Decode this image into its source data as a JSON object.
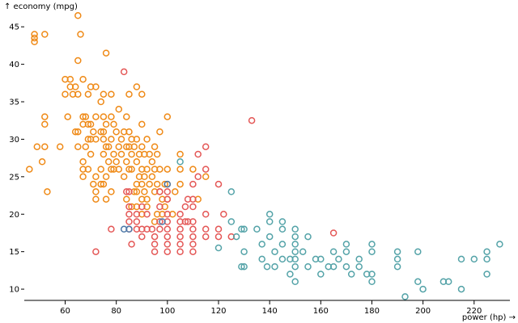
{
  "chart_data": {
    "type": "scatter",
    "xlabel": "power (hp) →",
    "ylabel": "↑ economy (mpg)",
    "xlim": [
      44,
      234
    ],
    "ylim": [
      8.5,
      47.5
    ],
    "xticks": [
      "60",
      "80",
      "100",
      "120",
      "140",
      "160",
      "180",
      "200",
      "220"
    ],
    "yticks": [
      "10",
      "15",
      "20",
      "25",
      "30",
      "35",
      "40",
      "45"
    ],
    "grid": false,
    "legend": "none",
    "series": [
      {
        "color": "#ef8a17",
        "points": [
          [
            46,
            26
          ],
          [
            48,
            44
          ],
          [
            48,
            43.5
          ],
          [
            48,
            43
          ],
          [
            49,
            29
          ],
          [
            51,
            27
          ],
          [
            52,
            44
          ],
          [
            52,
            33
          ],
          [
            52,
            32
          ],
          [
            52,
            29
          ],
          [
            53,
            23
          ],
          [
            58,
            29
          ],
          [
            60,
            38
          ],
          [
            60,
            36
          ],
          [
            61,
            33
          ],
          [
            62,
            38
          ],
          [
            62,
            37
          ],
          [
            63,
            36
          ],
          [
            64,
            37
          ],
          [
            64,
            31
          ],
          [
            65,
            46.5
          ],
          [
            65,
            40.5
          ],
          [
            65,
            36
          ],
          [
            65,
            31
          ],
          [
            65,
            29
          ],
          [
            66,
            44
          ],
          [
            67,
            38
          ],
          [
            67,
            33
          ],
          [
            67,
            32
          ],
          [
            67,
            27
          ],
          [
            67,
            26
          ],
          [
            67,
            25
          ],
          [
            68,
            33
          ],
          [
            68,
            29
          ],
          [
            69,
            36
          ],
          [
            69,
            32
          ],
          [
            69,
            30
          ],
          [
            69,
            26
          ],
          [
            70,
            37
          ],
          [
            70,
            32
          ],
          [
            70,
            30
          ],
          [
            70,
            28
          ],
          [
            71,
            31
          ],
          [
            71,
            24
          ],
          [
            72,
            37
          ],
          [
            72,
            33
          ],
          [
            72,
            30
          ],
          [
            72,
            25
          ],
          [
            72,
            23
          ],
          [
            72,
            22
          ],
          [
            74,
            35
          ],
          [
            74,
            31
          ],
          [
            74,
            26
          ],
          [
            74,
            24
          ],
          [
            75,
            36
          ],
          [
            75,
            33
          ],
          [
            75,
            31
          ],
          [
            75,
            30
          ],
          [
            75,
            28
          ],
          [
            75,
            24
          ],
          [
            76,
            41.5
          ],
          [
            76,
            32
          ],
          [
            76,
            29
          ],
          [
            76,
            25
          ],
          [
            76,
            22
          ],
          [
            77,
            29
          ],
          [
            77,
            27
          ],
          [
            78,
            36
          ],
          [
            78,
            33
          ],
          [
            78,
            30
          ],
          [
            78,
            26
          ],
          [
            78,
            23
          ],
          [
            79,
            32
          ],
          [
            79,
            28
          ],
          [
            79,
            26
          ],
          [
            80,
            31
          ],
          [
            80,
            27
          ],
          [
            81,
            34
          ],
          [
            81,
            29
          ],
          [
            81,
            26
          ],
          [
            82,
            30
          ],
          [
            82,
            28
          ],
          [
            83,
            31
          ],
          [
            83,
            25
          ],
          [
            84,
            33
          ],
          [
            84,
            29
          ],
          [
            84,
            27
          ],
          [
            84,
            22
          ],
          [
            85,
            36
          ],
          [
            85,
            31
          ],
          [
            85,
            29
          ],
          [
            85,
            26
          ],
          [
            86,
            30
          ],
          [
            86,
            26
          ],
          [
            86,
            21
          ],
          [
            87,
            29
          ],
          [
            87,
            23
          ],
          [
            88,
            37
          ],
          [
            88,
            30
          ],
          [
            88,
            27
          ],
          [
            88,
            23
          ],
          [
            88,
            21
          ],
          [
            89,
            28
          ],
          [
            89,
            25
          ],
          [
            90,
            36
          ],
          [
            90,
            32
          ],
          [
            90,
            29
          ],
          [
            90,
            26
          ],
          [
            90,
            24
          ],
          [
            90,
            22
          ],
          [
            91,
            28
          ],
          [
            91,
            25
          ],
          [
            92,
            30
          ],
          [
            92,
            26
          ],
          [
            92,
            22
          ],
          [
            93,
            28
          ],
          [
            93,
            24
          ],
          [
            94,
            27
          ],
          [
            94,
            25
          ],
          [
            95,
            29
          ],
          [
            95,
            26
          ],
          [
            95,
            23
          ],
          [
            96,
            28
          ],
          [
            96,
            24
          ],
          [
            97,
            31
          ],
          [
            97,
            26
          ],
          [
            97,
            23
          ],
          [
            98,
            22
          ],
          [
            99,
            24
          ],
          [
            99,
            21
          ],
          [
            100,
            33
          ],
          [
            100,
            26
          ],
          [
            100,
            24
          ],
          [
            100,
            22
          ],
          [
            102,
            20
          ],
          [
            103,
            23
          ],
          [
            105,
            28
          ],
          [
            105,
            26
          ],
          [
            105,
            24
          ],
          [
            110,
            26
          ],
          [
            112,
            22
          ],
          [
            115,
            25
          ],
          [
            86,
            28
          ],
          [
            88,
            24
          ],
          [
            91,
            23
          ],
          [
            95,
            19
          ],
          [
            96,
            20
          ],
          [
            98,
            20
          ],
          [
            90,
            20
          ],
          [
            92,
            21
          ]
        ]
      },
      {
        "color": "#e45756",
        "points": [
          [
            72,
            15
          ],
          [
            78,
            18
          ],
          [
            83,
            39
          ],
          [
            85,
            23
          ],
          [
            85,
            21
          ],
          [
            85,
            20
          ],
          [
            85,
            19
          ],
          [
            85,
            18
          ],
          [
            88,
            18
          ],
          [
            88,
            20
          ],
          [
            88,
            19
          ],
          [
            90,
            21
          ],
          [
            90,
            18
          ],
          [
            90,
            17
          ],
          [
            92,
            20
          ],
          [
            92,
            18
          ],
          [
            95,
            17
          ],
          [
            95,
            16
          ],
          [
            95,
            15
          ],
          [
            97,
            23
          ],
          [
            97,
            21
          ],
          [
            97,
            19
          ],
          [
            97,
            18
          ],
          [
            100,
            23
          ],
          [
            100,
            22
          ],
          [
            100,
            20
          ],
          [
            100,
            19
          ],
          [
            100,
            18
          ],
          [
            100,
            17
          ],
          [
            100,
            16
          ],
          [
            100,
            15
          ],
          [
            105,
            20
          ],
          [
            105,
            19
          ],
          [
            105,
            18
          ],
          [
            105,
            17
          ],
          [
            105,
            16
          ],
          [
            105,
            15
          ],
          [
            107,
            21
          ],
          [
            107,
            19
          ],
          [
            108,
            22
          ],
          [
            108,
            19
          ],
          [
            110,
            24
          ],
          [
            110,
            22
          ],
          [
            110,
            21
          ],
          [
            110,
            19
          ],
          [
            110,
            18
          ],
          [
            110,
            17
          ],
          [
            110,
            16
          ],
          [
            110,
            15
          ],
          [
            112,
            28
          ],
          [
            112,
            25
          ],
          [
            115,
            29
          ],
          [
            115,
            26
          ],
          [
            115,
            20
          ],
          [
            115,
            18
          ],
          [
            115,
            17
          ],
          [
            120,
            24
          ],
          [
            120,
            18
          ],
          [
            120,
            17
          ],
          [
            122,
            20
          ],
          [
            125,
            17
          ],
          [
            133,
            32.5
          ],
          [
            165,
            17.5
          ],
          [
            84,
            23
          ],
          [
            94,
            18
          ],
          [
            86,
            16
          ]
        ]
      },
      {
        "color": "#4c78a8",
        "points": [
          [
            83,
            18
          ],
          [
            85,
            18
          ],
          [
            98,
            19
          ],
          [
            100,
            24
          ]
        ]
      },
      {
        "color": "#54a3a8",
        "points": [
          [
            105,
            27
          ],
          [
            120,
            15.5
          ],
          [
            125,
            23
          ],
          [
            125,
            19
          ],
          [
            127,
            17
          ],
          [
            129,
            18
          ],
          [
            129,
            13
          ],
          [
            130,
            18
          ],
          [
            130,
            15
          ],
          [
            130,
            13
          ],
          [
            135,
            18
          ],
          [
            137,
            16
          ],
          [
            137,
            14
          ],
          [
            139,
            13
          ],
          [
            140,
            20
          ],
          [
            140,
            19
          ],
          [
            140,
            17
          ],
          [
            142,
            15
          ],
          [
            142,
            13
          ],
          [
            145,
            19
          ],
          [
            145,
            18
          ],
          [
            145,
            16
          ],
          [
            145,
            14
          ],
          [
            148,
            14
          ],
          [
            148,
            12
          ],
          [
            150,
            18
          ],
          [
            150,
            17
          ],
          [
            150,
            16
          ],
          [
            150,
            15
          ],
          [
            150,
            14
          ],
          [
            150,
            13
          ],
          [
            150,
            11
          ],
          [
            153,
            15
          ],
          [
            155,
            17
          ],
          [
            155,
            13
          ],
          [
            158,
            14
          ],
          [
            160,
            14
          ],
          [
            160,
            12
          ],
          [
            163,
            13
          ],
          [
            165,
            15
          ],
          [
            165,
            13
          ],
          [
            167,
            14
          ],
          [
            170,
            16
          ],
          [
            170,
            15
          ],
          [
            170,
            13
          ],
          [
            172,
            12
          ],
          [
            175,
            14
          ],
          [
            175,
            13
          ],
          [
            178,
            12
          ],
          [
            180,
            16
          ],
          [
            180,
            15
          ],
          [
            180,
            12
          ],
          [
            180,
            11
          ],
          [
            190,
            15
          ],
          [
            190,
            14
          ],
          [
            190,
            13
          ],
          [
            193,
            9
          ],
          [
            198,
            15
          ],
          [
            198,
            11
          ],
          [
            200,
            10
          ],
          [
            208,
            11
          ],
          [
            210,
            11
          ],
          [
            215,
            14
          ],
          [
            215,
            10
          ],
          [
            220,
            14
          ],
          [
            225,
            14
          ],
          [
            225,
            12
          ],
          [
            230,
            16
          ],
          [
            225,
            15
          ]
        ]
      }
    ]
  }
}
